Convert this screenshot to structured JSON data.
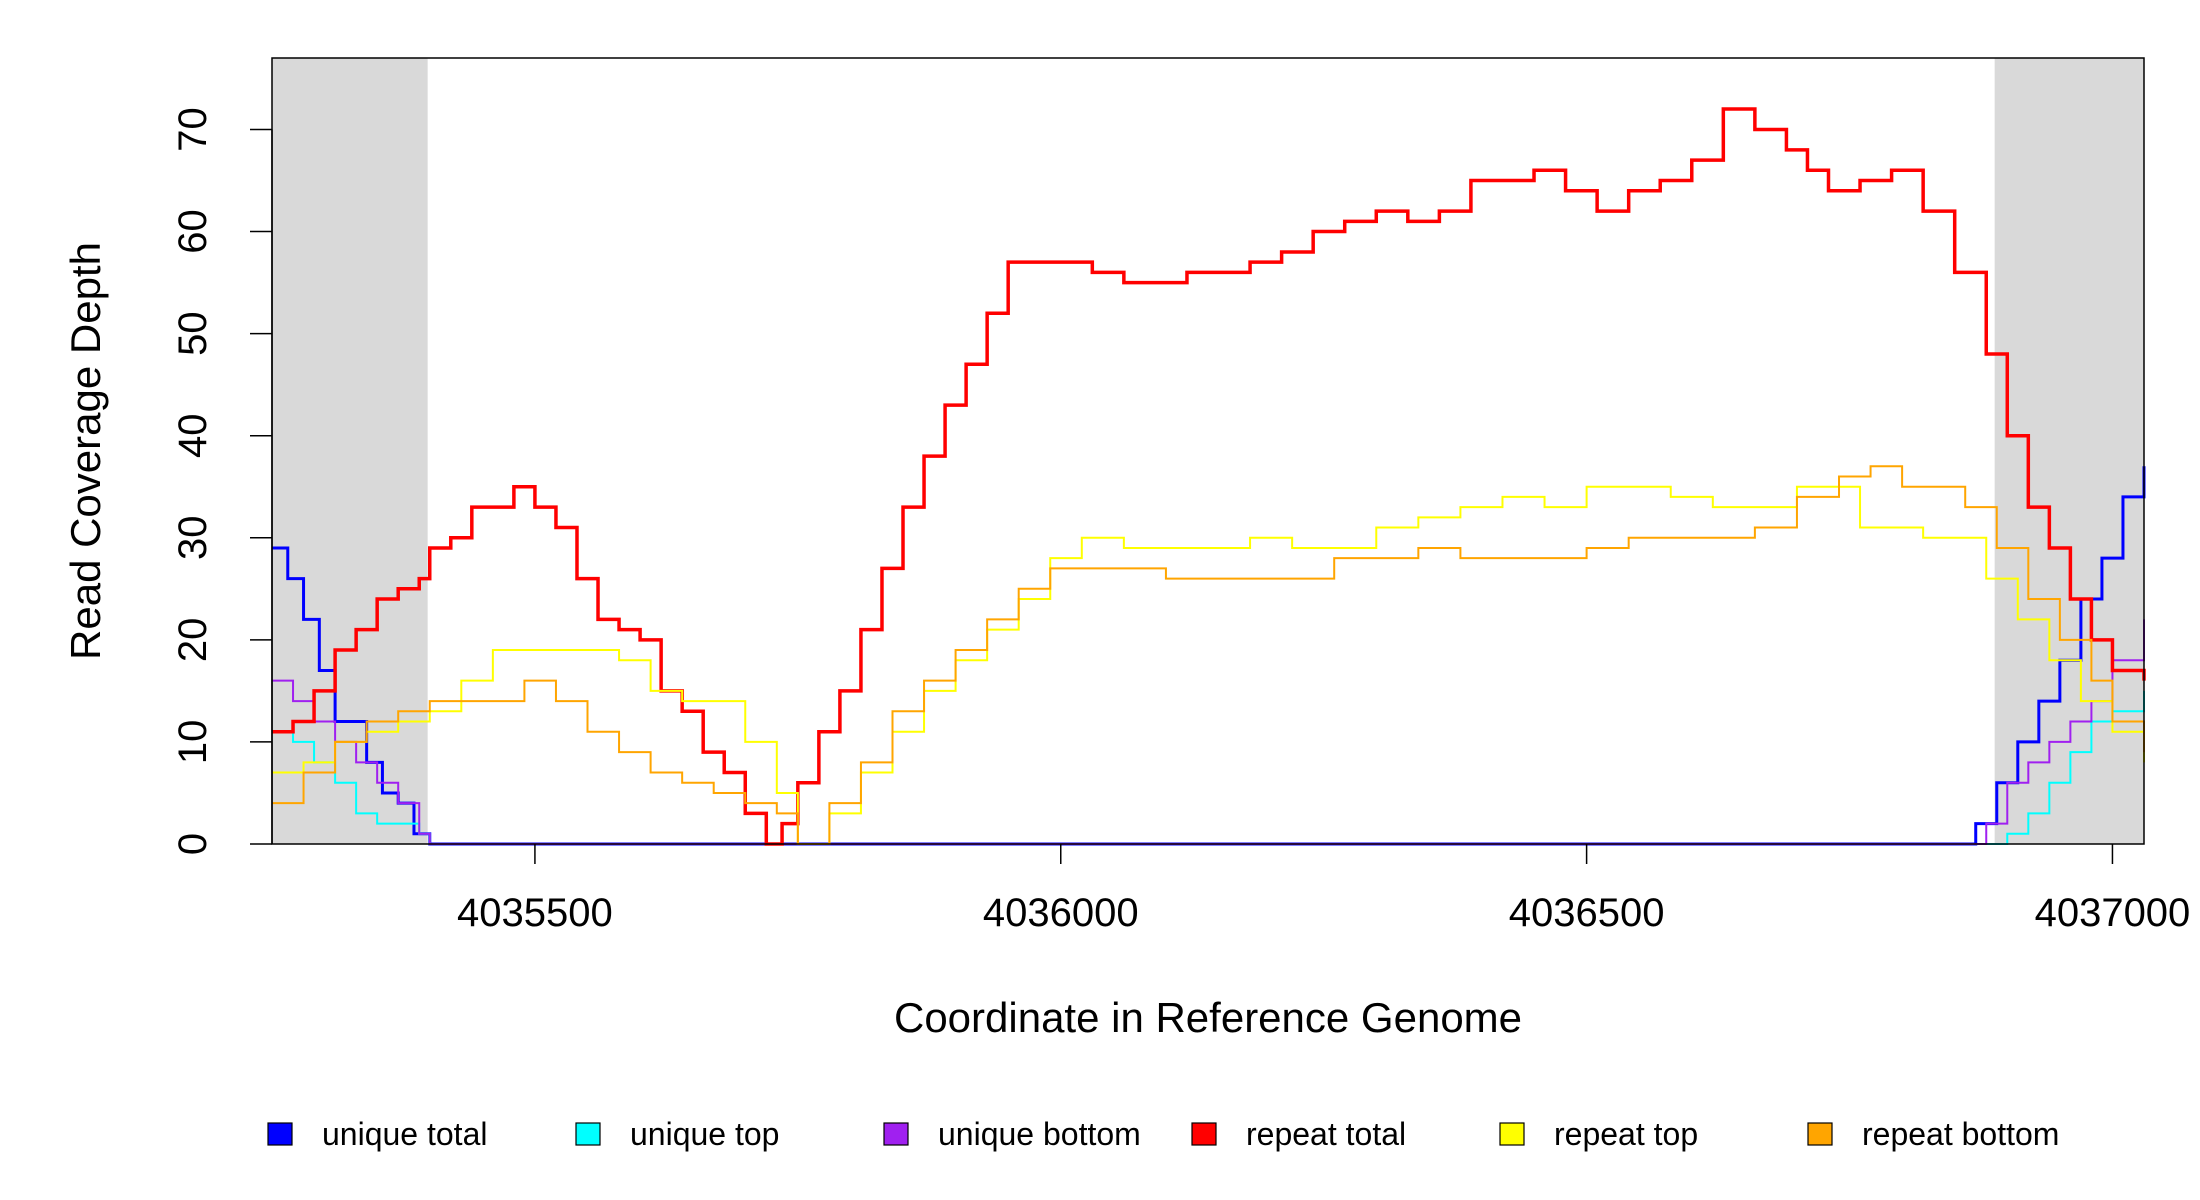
{
  "chart_data": {
    "type": "line",
    "xlabel": "Coordinate in Reference Genome",
    "ylabel": "Read Coverage Depth",
    "xlim": [
      4035250,
      4037030
    ],
    "ylim": [
      0,
      77
    ],
    "xticks": [
      4035500,
      4036000,
      4036500,
      4037000
    ],
    "xtick_labels": [
      "4035500",
      "4036000",
      "4036500",
      "4037000"
    ],
    "yticks": [
      0,
      10,
      20,
      30,
      40,
      50,
      60,
      70
    ],
    "ytick_labels": [
      "0",
      "10",
      "20",
      "30",
      "40",
      "50",
      "60",
      "70"
    ],
    "shaded_regions": [
      [
        4035250,
        4035398
      ],
      [
        4036888,
        4037030
      ]
    ],
    "shade_color": "#d9d9d9",
    "legend_position": "bottom",
    "series": [
      {
        "name": "unique total",
        "color": "#0000ff",
        "x": [
          4035250,
          4035265,
          4035280,
          4035295,
          4035310,
          4035325,
          4035340,
          4035355,
          4035370,
          4035385,
          4035400,
          4035420,
          4035440,
          4035460,
          4036850,
          4036870,
          4036890,
          4036910,
          4036930,
          4036950,
          4036970,
          4036990,
          4037010,
          4037030
        ],
        "y": [
          29,
          26,
          22,
          17,
          12,
          12,
          8,
          5,
          4,
          1,
          0,
          0,
          0,
          0,
          0,
          2,
          6,
          10,
          14,
          18,
          24,
          28,
          34,
          37
        ]
      },
      {
        "name": "unique top",
        "color": "#00ffff",
        "x": [
          4035250,
          4035270,
          4035290,
          4035310,
          4035330,
          4035350,
          4035370,
          4035390,
          4035400,
          4035420,
          4036880,
          4036900,
          4036920,
          4036940,
          4036960,
          4036980,
          4037000,
          4037030
        ],
        "y": [
          11,
          10,
          8,
          6,
          3,
          2,
          2,
          1,
          0,
          0,
          0,
          1,
          3,
          6,
          9,
          12,
          13,
          15
        ],
        "stroke_width": 2
      },
      {
        "name": "unique bottom",
        "color": "#a020f0",
        "x": [
          4035250,
          4035270,
          4035290,
          4035310,
          4035330,
          4035350,
          4035370,
          4035390,
          4035400,
          4035420,
          4036860,
          4036880,
          4036900,
          4036920,
          4036940,
          4036960,
          4036980,
          4037000,
          4037030
        ],
        "y": [
          16,
          14,
          12,
          10,
          8,
          6,
          4,
          1,
          0,
          0,
          0,
          2,
          6,
          8,
          10,
          12,
          14,
          18,
          22
        ],
        "stroke_width": 2
      },
      {
        "name": "repeat total",
        "color": "#ff0000",
        "x": [
          4035250,
          4035270,
          4035290,
          4035310,
          4035330,
          4035350,
          4035370,
          4035390,
          4035400,
          4035420,
          4035440,
          4035460,
          4035480,
          4035500,
          4035520,
          4035540,
          4035560,
          4035580,
          4035600,
          4035620,
          4035640,
          4035660,
          4035680,
          4035700,
          4035720,
          4035735,
          4035750,
          4035770,
          4035790,
          4035810,
          4035830,
          4035850,
          4035870,
          4035890,
          4035910,
          4035930,
          4035950,
          4035970,
          4035990,
          4036010,
          4036030,
          4036060,
          4036090,
          4036120,
          4036150,
          4036180,
          4036210,
          4036240,
          4036270,
          4036300,
          4036330,
          4036360,
          4036390,
          4036420,
          4036450,
          4036480,
          4036510,
          4036540,
          4036570,
          4036600,
          4036630,
          4036660,
          4036690,
          4036710,
          4036730,
          4036760,
          4036790,
          4036820,
          4036850,
          4036880,
          4036900,
          4036920,
          4036940,
          4036960,
          4036980,
          4037000,
          4037030
        ],
        "y": [
          11,
          12,
          15,
          19,
          21,
          24,
          25,
          26,
          29,
          30,
          33,
          33,
          35,
          33,
          31,
          26,
          22,
          21,
          20,
          15,
          13,
          9,
          7,
          3,
          0,
          2,
          6,
          11,
          15,
          21,
          27,
          33,
          38,
          43,
          47,
          52,
          57,
          57,
          57,
          57,
          56,
          55,
          55,
          56,
          56,
          57,
          58,
          60,
          61,
          62,
          61,
          62,
          65,
          65,
          66,
          64,
          62,
          64,
          65,
          67,
          72,
          70,
          68,
          66,
          64,
          65,
          66,
          62,
          56,
          48,
          40,
          33,
          29,
          24,
          20,
          17,
          16
        ],
        "stroke_width": 3.5
      },
      {
        "name": "repeat top",
        "color": "#ffff00",
        "x": [
          4035250,
          4035280,
          4035310,
          4035340,
          4035370,
          4035400,
          4035430,
          4035460,
          4035490,
          4035520,
          4035550,
          4035580,
          4035610,
          4035640,
          4035670,
          4035700,
          4035730,
          4035750,
          4035780,
          4035810,
          4035840,
          4035870,
          4035900,
          4035930,
          4035960,
          4035990,
          4036020,
          4036060,
          4036100,
          4036140,
          4036180,
          4036220,
          4036260,
          4036300,
          4036340,
          4036380,
          4036420,
          4036460,
          4036500,
          4036540,
          4036580,
          4036620,
          4036660,
          4036700,
          4036730,
          4036760,
          4036790,
          4036820,
          4036850,
          4036880,
          4036910,
          4036940,
          4036970,
          4037000,
          4037030
        ],
        "y": [
          7,
          8,
          10,
          11,
          12,
          13,
          16,
          19,
          19,
          19,
          19,
          18,
          15,
          14,
          14,
          10,
          5,
          0,
          3,
          7,
          11,
          15,
          18,
          21,
          24,
          28,
          30,
          29,
          29,
          29,
          30,
          29,
          29,
          31,
          32,
          33,
          34,
          33,
          35,
          35,
          34,
          33,
          33,
          35,
          35,
          31,
          31,
          30,
          30,
          26,
          22,
          18,
          14,
          11,
          8
        ],
        "stroke_width": 2
      },
      {
        "name": "repeat bottom",
        "color": "#ffa500",
        "x": [
          4035250,
          4035280,
          4035310,
          4035340,
          4035370,
          4035400,
          4035430,
          4035460,
          4035490,
          4035520,
          4035550,
          4035580,
          4035610,
          4035640,
          4035670,
          4035700,
          4035730,
          4035750,
          4035780,
          4035810,
          4035840,
          4035870,
          4035900,
          4035930,
          4035960,
          4035990,
          4036020,
          4036060,
          4036100,
          4036140,
          4036180,
          4036220,
          4036260,
          4036300,
          4036340,
          4036380,
          4036420,
          4036460,
          4036500,
          4036540,
          4036580,
          4036620,
          4036660,
          4036700,
          4036740,
          4036770,
          4036800,
          4036830,
          4036860,
          4036890,
          4036920,
          4036950,
          4036980,
          4037000,
          4037030
        ],
        "y": [
          4,
          7,
          10,
          12,
          13,
          14,
          14,
          14,
          16,
          14,
          11,
          9,
          7,
          6,
          5,
          4,
          3,
          0,
          4,
          8,
          13,
          16,
          19,
          22,
          25,
          27,
          27,
          27,
          26,
          26,
          26,
          26,
          28,
          28,
          29,
          28,
          28,
          28,
          29,
          30,
          30,
          30,
          31,
          34,
          36,
          37,
          35,
          35,
          33,
          29,
          24,
          20,
          16,
          12,
          9
        ],
        "stroke_width": 2
      }
    ]
  }
}
